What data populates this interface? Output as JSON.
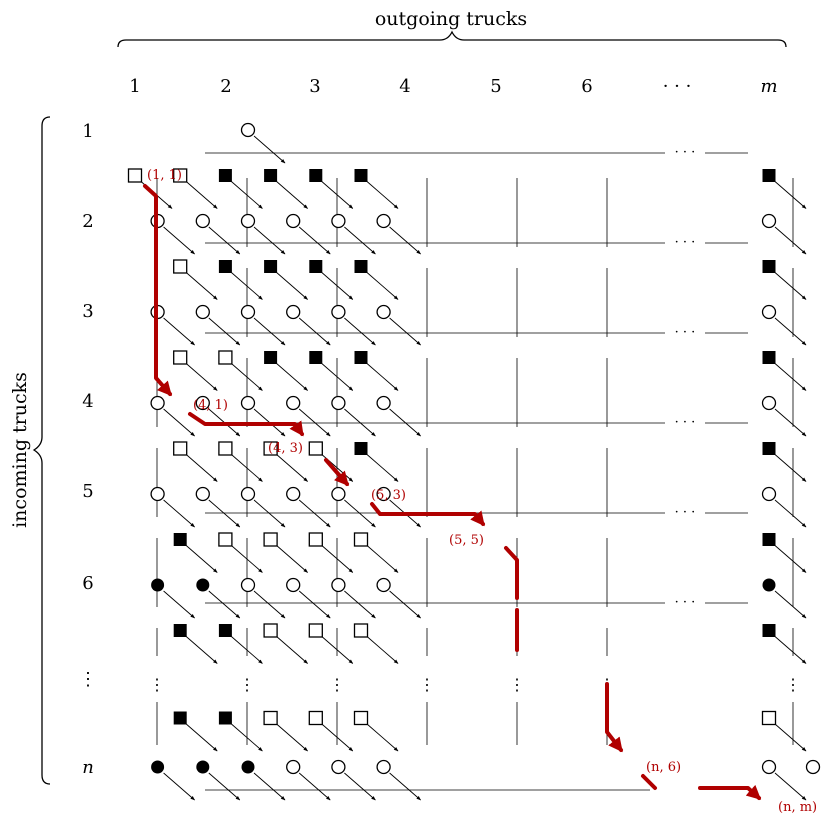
{
  "top_label": "outgoing trucks",
  "side_label": "incoming trucks",
  "column_labels": [
    "1",
    "2",
    "3",
    "4",
    "5",
    "6",
    "· · ·",
    "m"
  ],
  "row_labels": [
    "1",
    "2",
    "3",
    "4",
    "5",
    "6",
    "⋮",
    "n"
  ],
  "path_labels": [
    "(1, 1)",
    "(4, 1)",
    "(4, 3)",
    "(5, 3)",
    "(5, 5)",
    "(n, 6)",
    "(n, m)"
  ],
  "node_shapes": {
    "even_rows": [
      "     O        ",
      " O O O O O O O",
      " O O O O O O O",
      " O O O O O O O",
      " O O O O O O O",
      " F F O O O O F",
      "              ",
      " F F F O O O OO"
    ],
    "odd_rows": [
      "Q Q R R R R  R",
      "  Q R R R R  R",
      "  Q Q R R R  R",
      "  Q Q Q Q R  R",
      "  R Q Q Q Q  R",
      "  R R Q Q Q  R",
      "  R R Q Q Q  Q"
    ],
    "legend": {
      "O": "open-circle",
      "F": "filled-circle",
      "Q": "open-square",
      "R": "filled-square"
    }
  },
  "colors": {
    "ink": "#000000",
    "path": "#b00000"
  }
}
